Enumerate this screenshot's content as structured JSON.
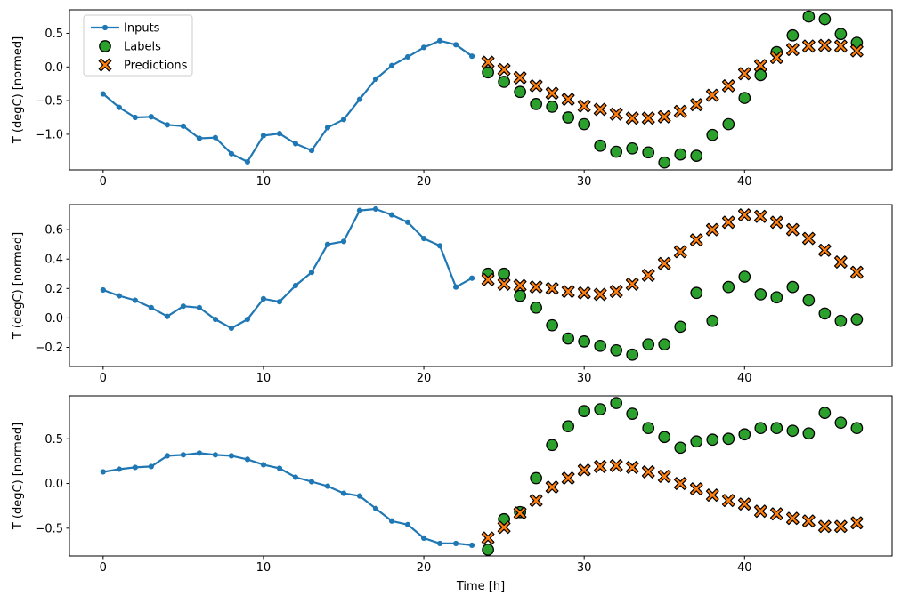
{
  "figure": {
    "xlabel": "Time [h]",
    "colors": {
      "inputs_line": "#1f77b4",
      "labels_face": "#2ca02c",
      "predictions_face": "#ff7f0e",
      "marker_edge": "#000000",
      "axis": "#000000",
      "legend_border": "#cccccc",
      "background": "#ffffff"
    },
    "legend": {
      "position": "upper-left-first-panel",
      "items": [
        {
          "label": "Inputs",
          "marker": "line-dot"
        },
        {
          "label": "Labels",
          "marker": "circle"
        },
        {
          "label": "Predictions",
          "marker": "x"
        }
      ]
    }
  },
  "chart_data": [
    {
      "type": "line",
      "panel": "top",
      "ylabel": "T (degC) [normed]",
      "xlabel": "",
      "xlim": [
        -2.1,
        49.2
      ],
      "ylim": [
        -1.53,
        0.85
      ],
      "xticks": [
        0,
        10,
        20,
        30,
        40
      ],
      "yticks": [
        0.5,
        0.0,
        -0.5,
        -1.0
      ],
      "grid": false,
      "legend_visible": true,
      "series": [
        {
          "name": "Inputs",
          "style": "line-dot",
          "x": [
            0,
            1,
            2,
            3,
            4,
            5,
            6,
            7,
            8,
            9,
            10,
            11,
            12,
            13,
            14,
            15,
            16,
            17,
            18,
            19,
            20,
            21,
            22,
            23
          ],
          "y": [
            -0.4,
            -0.6,
            -0.75,
            -0.74,
            -0.86,
            -0.88,
            -1.06,
            -1.05,
            -1.29,
            -1.41,
            -1.02,
            -0.99,
            -1.14,
            -1.24,
            -0.9,
            -0.78,
            -0.48,
            -0.18,
            0.02,
            0.15,
            0.29,
            0.39,
            0.33,
            0.16
          ]
        },
        {
          "name": "Labels",
          "style": "scatter-circle",
          "x": [
            24,
            25,
            26,
            27,
            28,
            29,
            30,
            31,
            32,
            33,
            34,
            35,
            36,
            37,
            38,
            39,
            40,
            41,
            42,
            43,
            44,
            45,
            46,
            47
          ],
          "y": [
            -0.08,
            -0.22,
            -0.37,
            -0.55,
            -0.59,
            -0.75,
            -0.85,
            -1.17,
            -1.26,
            -1.21,
            -1.27,
            -1.42,
            -1.3,
            -1.32,
            -1.01,
            -0.85,
            -0.46,
            -0.12,
            0.22,
            0.47,
            0.75,
            0.71,
            0.49,
            0.36
          ]
        },
        {
          "name": "Predictions",
          "style": "scatter-x",
          "x": [
            24,
            25,
            26,
            27,
            28,
            29,
            30,
            31,
            32,
            33,
            34,
            35,
            36,
            37,
            38,
            39,
            40,
            41,
            42,
            43,
            44,
            45,
            46,
            47
          ],
          "y": [
            0.07,
            -0.04,
            -0.16,
            -0.28,
            -0.39,
            -0.48,
            -0.58,
            -0.63,
            -0.7,
            -0.76,
            -0.76,
            -0.74,
            -0.66,
            -0.56,
            -0.42,
            -0.28,
            -0.1,
            0.02,
            0.14,
            0.26,
            0.31,
            0.32,
            0.31,
            0.24
          ]
        }
      ]
    },
    {
      "type": "line",
      "panel": "middle",
      "ylabel": "T (degC) [normed]",
      "xlabel": "",
      "xlim": [
        -2.1,
        49.2
      ],
      "ylim": [
        -0.33,
        0.77
      ],
      "xticks": [
        0,
        10,
        20,
        30,
        40
      ],
      "yticks": [
        0.6,
        0.4,
        0.2,
        0.0,
        -0.2
      ],
      "grid": false,
      "legend_visible": false,
      "series": [
        {
          "name": "Inputs",
          "style": "line-dot",
          "x": [
            0,
            1,
            2,
            3,
            4,
            5,
            6,
            7,
            8,
            9,
            10,
            11,
            12,
            13,
            14,
            15,
            16,
            17,
            18,
            19,
            20,
            21,
            22,
            23
          ],
          "y": [
            0.19,
            0.15,
            0.12,
            0.07,
            0.01,
            0.08,
            0.07,
            -0.01,
            -0.07,
            -0.01,
            0.13,
            0.11,
            0.22,
            0.31,
            0.5,
            0.52,
            0.73,
            0.74,
            0.7,
            0.65,
            0.54,
            0.49,
            0.21,
            0.27
          ]
        },
        {
          "name": "Labels",
          "style": "scatter-circle",
          "x": [
            24,
            25,
            26,
            27,
            28,
            29,
            30,
            31,
            32,
            33,
            34,
            35,
            36,
            37,
            38,
            39,
            40,
            41,
            42,
            43,
            44,
            45,
            46,
            47
          ],
          "y": [
            0.3,
            0.3,
            0.15,
            0.07,
            -0.05,
            -0.14,
            -0.16,
            -0.19,
            -0.22,
            -0.25,
            -0.18,
            -0.18,
            -0.06,
            0.17,
            -0.02,
            0.21,
            0.28,
            0.16,
            0.14,
            0.21,
            0.12,
            0.03,
            -0.02,
            -0.01
          ]
        },
        {
          "name": "Predictions",
          "style": "scatter-x",
          "x": [
            24,
            25,
            26,
            27,
            28,
            29,
            30,
            31,
            32,
            33,
            34,
            35,
            36,
            37,
            38,
            39,
            40,
            41,
            42,
            43,
            44,
            45,
            46,
            47
          ],
          "y": [
            0.26,
            0.23,
            0.22,
            0.21,
            0.2,
            0.18,
            0.17,
            0.16,
            0.18,
            0.23,
            0.29,
            0.37,
            0.45,
            0.53,
            0.6,
            0.65,
            0.7,
            0.69,
            0.65,
            0.6,
            0.54,
            0.46,
            0.38,
            0.31
          ]
        }
      ]
    },
    {
      "type": "line",
      "panel": "bottom",
      "ylabel": "T (degC) [normed]",
      "xlabel": "Time [h]",
      "xlim": [
        -2.1,
        49.2
      ],
      "ylim": [
        -0.81,
        0.98
      ],
      "xticks": [
        0,
        10,
        20,
        30,
        40
      ],
      "yticks": [
        0.5,
        0.0,
        -0.5
      ],
      "grid": false,
      "legend_visible": false,
      "series": [
        {
          "name": "Inputs",
          "style": "line-dot",
          "x": [
            0,
            1,
            2,
            3,
            4,
            5,
            6,
            7,
            8,
            9,
            10,
            11,
            12,
            13,
            14,
            15,
            16,
            17,
            18,
            19,
            20,
            21,
            22,
            23
          ],
          "y": [
            0.13,
            0.16,
            0.18,
            0.19,
            0.31,
            0.32,
            0.34,
            0.32,
            0.31,
            0.27,
            0.21,
            0.17,
            0.07,
            0.02,
            -0.03,
            -0.11,
            -0.14,
            -0.28,
            -0.42,
            -0.46,
            -0.61,
            -0.67,
            -0.67,
            -0.69
          ]
        },
        {
          "name": "Labels",
          "style": "scatter-circle",
          "x": [
            24,
            25,
            26,
            27,
            28,
            29,
            30,
            31,
            32,
            33,
            34,
            35,
            36,
            37,
            38,
            39,
            40,
            41,
            42,
            43,
            44,
            45,
            46,
            47
          ],
          "y": [
            -0.74,
            -0.4,
            -0.32,
            0.06,
            0.43,
            0.64,
            0.81,
            0.83,
            0.9,
            0.78,
            0.62,
            0.52,
            0.4,
            0.47,
            0.49,
            0.5,
            0.55,
            0.62,
            0.62,
            0.59,
            0.56,
            0.79,
            0.68,
            0.62
          ]
        },
        {
          "name": "Predictions",
          "style": "scatter-x",
          "x": [
            24,
            25,
            26,
            27,
            28,
            29,
            30,
            31,
            32,
            33,
            34,
            35,
            36,
            37,
            38,
            39,
            40,
            41,
            42,
            43,
            44,
            45,
            46,
            47
          ],
          "y": [
            -0.61,
            -0.49,
            -0.33,
            -0.19,
            -0.04,
            0.06,
            0.15,
            0.19,
            0.2,
            0.18,
            0.13,
            0.08,
            0.0,
            -0.06,
            -0.13,
            -0.19,
            -0.23,
            -0.31,
            -0.34,
            -0.39,
            -0.42,
            -0.48,
            -0.48,
            -0.44
          ]
        }
      ]
    }
  ]
}
